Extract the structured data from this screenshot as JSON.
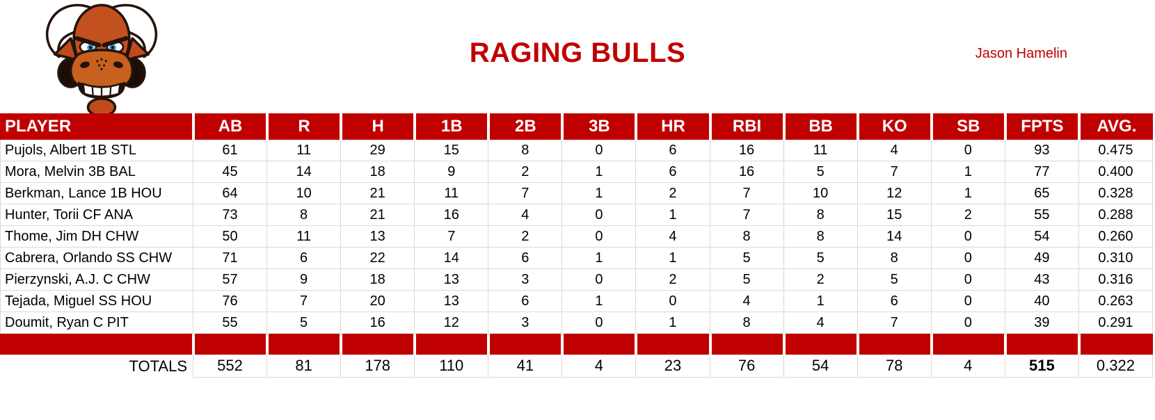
{
  "page": {
    "title": "RAGING BULLS",
    "owner": "Jason Hamelin"
  },
  "logo": {
    "icon": "bull-mascot-icon"
  },
  "colors": {
    "accent": "#C00000",
    "header_text": "#FFFFFF",
    "gridline": "#D9D9D9"
  },
  "table": {
    "columns": [
      "PLAYER",
      "AB",
      "R",
      "H",
      "1B",
      "2B",
      "3B",
      "HR",
      "RBI",
      "BB",
      "KO",
      "SB",
      "FPTS",
      "AVG."
    ],
    "rows": [
      {
        "player": "Pujols, Albert 1B STL",
        "values": [
          61,
          11,
          29,
          15,
          8,
          0,
          6,
          16,
          11,
          4,
          0,
          93,
          "0.475"
        ]
      },
      {
        "player": "Mora, Melvin 3B BAL",
        "values": [
          45,
          14,
          18,
          9,
          2,
          1,
          6,
          16,
          5,
          7,
          1,
          77,
          "0.400"
        ]
      },
      {
        "player": "Berkman, Lance 1B HOU",
        "values": [
          64,
          10,
          21,
          11,
          7,
          1,
          2,
          7,
          10,
          12,
          1,
          65,
          "0.328"
        ]
      },
      {
        "player": "Hunter, Torii CF ANA",
        "values": [
          73,
          8,
          21,
          16,
          4,
          0,
          1,
          7,
          8,
          15,
          2,
          55,
          "0.288"
        ]
      },
      {
        "player": "Thome, Jim DH CHW",
        "values": [
          50,
          11,
          13,
          7,
          2,
          0,
          4,
          8,
          8,
          14,
          0,
          54,
          "0.260"
        ]
      },
      {
        "player": "Cabrera, Orlando SS CHW",
        "values": [
          71,
          6,
          22,
          14,
          6,
          1,
          1,
          5,
          5,
          8,
          0,
          49,
          "0.310"
        ]
      },
      {
        "player": "Pierzynski, A.J. C CHW",
        "values": [
          57,
          9,
          18,
          13,
          3,
          0,
          2,
          5,
          2,
          5,
          0,
          43,
          "0.316"
        ]
      },
      {
        "player": "Tejada, Miguel SS HOU",
        "values": [
          76,
          7,
          20,
          13,
          6,
          1,
          0,
          4,
          1,
          6,
          0,
          40,
          "0.263"
        ]
      },
      {
        "player": "Doumit, Ryan C PIT",
        "values": [
          55,
          5,
          16,
          12,
          3,
          0,
          1,
          8,
          4,
          7,
          0,
          39,
          "0.291"
        ]
      }
    ],
    "totals": {
      "label": "TOTALS",
      "values": [
        552,
        81,
        178,
        110,
        41,
        4,
        23,
        76,
        54,
        78,
        4,
        515,
        "0.322"
      ],
      "bold_column": "FPTS"
    }
  }
}
